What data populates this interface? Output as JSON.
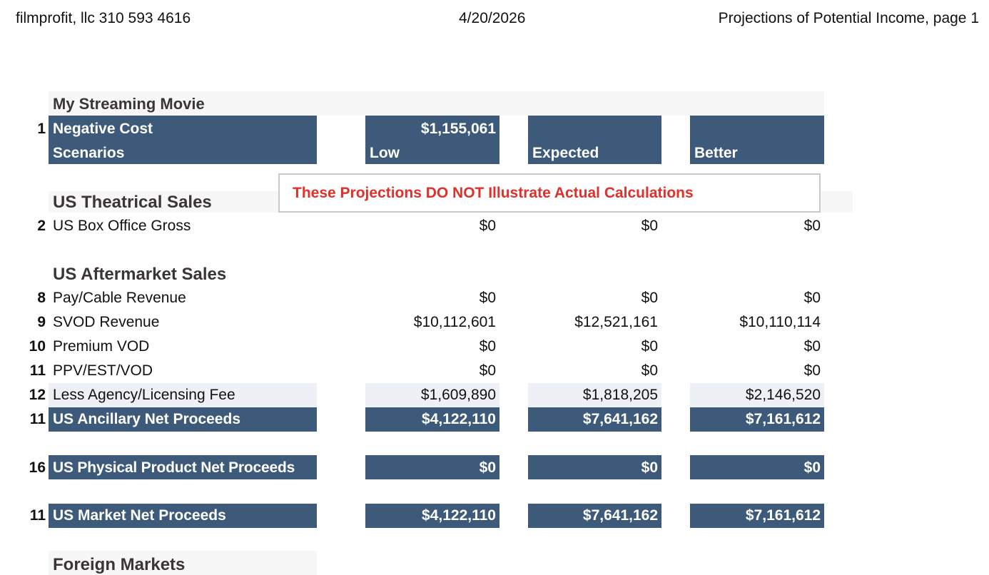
{
  "header": {
    "company": "filmprofit, llc  310 593 4616",
    "date": "4/20/2026",
    "page_title": "Projections of Potential Income, page  1"
  },
  "movie_title": "My Streaming Movie",
  "negative_cost": {
    "row_num": "1",
    "label": "Negative Cost",
    "value": "$1,155,061"
  },
  "scenarios": {
    "label": "Scenarios",
    "low": "Low",
    "expected": "Expected",
    "better": "Better"
  },
  "warning": "These  Projections DO NOT Illustrate Actual Calculations",
  "us_theatrical": {
    "title": "US Theatrical Sales",
    "rows": [
      {
        "num": "2",
        "label": "US Box Office Gross",
        "low": "$0",
        "expected": "$0",
        "better": "$0"
      }
    ]
  },
  "us_aftermarket": {
    "title": "US Aftermarket Sales",
    "rows": [
      {
        "num": "8",
        "label": "Pay/Cable Revenue",
        "low": "$0",
        "expected": "$0",
        "better": "$0"
      },
      {
        "num": "9",
        "label": "SVOD Revenue",
        "low": "$10,112,601",
        "expected": "$12,521,161",
        "better": "$10,110,114"
      },
      {
        "num": "10",
        "label": "Premium VOD",
        "low": "$0",
        "expected": "$0",
        "better": "$0"
      },
      {
        "num": "11",
        "label": "PPV/EST/VOD",
        "low": "$0",
        "expected": "$0",
        "better": "$0"
      },
      {
        "num": "12",
        "label": "Less Agency/Licensing Fee",
        "low": "$1,609,890",
        "expected": "$1,818,205",
        "better": "$2,146,520"
      }
    ],
    "total": {
      "num": "11",
      "label": "US Ancillary Net Proceeds",
      "low": "$4,122,110",
      "expected": "$7,641,162",
      "better": "$7,161,612"
    }
  },
  "us_physical": {
    "num": "16",
    "label": "US Physical Product Net Proceeds",
    "low": "$0",
    "expected": "$0",
    "better": "$0"
  },
  "us_market": {
    "num": "11",
    "label": "US Market Net Proceeds",
    "low": "$4,122,110",
    "expected": "$7,641,162",
    "better": "$7,161,612"
  },
  "foreign_markets": {
    "title": "Foreign Markets"
  },
  "colors": {
    "header_fill": "#3e5a7a",
    "shaded_row": "#edf0f4",
    "warning_text": "#e0302b"
  }
}
